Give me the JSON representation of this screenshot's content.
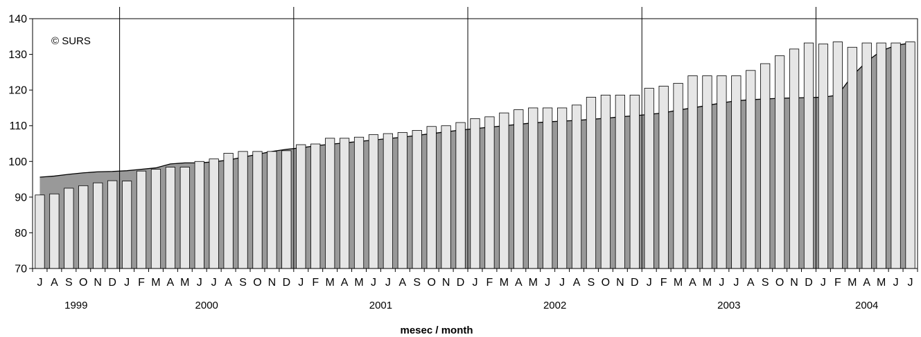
{
  "chart_data": {
    "type": "bar",
    "copyright": "© SURS",
    "xlabel": "mesec / month",
    "ylim": [
      70,
      140
    ],
    "yticks": [
      70,
      80,
      90,
      100,
      110,
      120,
      130,
      140
    ],
    "colors": {
      "bars": "#e6e6e6",
      "area": "#999999",
      "line": "#000000"
    },
    "categories": [
      "J",
      "A",
      "S",
      "O",
      "N",
      "D",
      "J",
      "F",
      "M",
      "A",
      "M",
      "J",
      "J",
      "A",
      "S",
      "O",
      "N",
      "D",
      "J",
      "F",
      "M",
      "A",
      "M",
      "J",
      "J",
      "A",
      "S",
      "O",
      "N",
      "D",
      "J",
      "F",
      "M",
      "A",
      "M",
      "J",
      "J",
      "A",
      "S",
      "O",
      "N",
      "D",
      "J",
      "F",
      "M",
      "A",
      "M",
      "J",
      "J",
      "A",
      "S",
      "O",
      "N",
      "D",
      "J",
      "F",
      "M",
      "A",
      "M",
      "J",
      "J"
    ],
    "years": [
      {
        "label": "1999",
        "start": 0,
        "count": 6
      },
      {
        "label": "2000",
        "start": 6,
        "count": 12
      },
      {
        "label": "2001",
        "start": 18,
        "count": 12
      },
      {
        "label": "2002",
        "start": 30,
        "count": 12
      },
      {
        "label": "2003",
        "start": 42,
        "count": 12
      },
      {
        "label": "2004",
        "start": 54,
        "count": 7
      }
    ],
    "series": [
      {
        "kind": "bar",
        "values": [
          90.6,
          90.9,
          92.5,
          93.2,
          94.0,
          94.6,
          94.5,
          97.3,
          97.8,
          98.4,
          98.4,
          100.0,
          100.7,
          102.3,
          102.8,
          102.8,
          102.8,
          103.0,
          104.7,
          104.9,
          106.5,
          106.5,
          106.8,
          107.5,
          107.8,
          108.1,
          108.7,
          109.8,
          110.0,
          110.9,
          112.0,
          112.5,
          113.6,
          114.5,
          115.0,
          115.0,
          115.0,
          115.8,
          118.0,
          118.6,
          118.6,
          118.6,
          120.5,
          121.1,
          121.9,
          124.0,
          124.0,
          124.0,
          124.0,
          125.5,
          127.4,
          129.6,
          131.5,
          133.2,
          132.9,
          133.5,
          132.0,
          133.2,
          133.2,
          133.2,
          133.5
        ]
      },
      {
        "kind": "area",
        "values": [
          95.6,
          95.9,
          96.4,
          96.8,
          97.1,
          97.2,
          97.4,
          97.8,
          98.2,
          99.3,
          99.6,
          99.6,
          99.9,
          100.4,
          101.2,
          102.0,
          102.8,
          103.4,
          103.8,
          104.4,
          104.8,
          105.2,
          105.6,
          106.0,
          106.4,
          106.8,
          107.3,
          107.8,
          108.3,
          108.8,
          109.2,
          109.6,
          110.0,
          110.4,
          110.8,
          111.1,
          111.3,
          111.5,
          111.8,
          112.1,
          112.5,
          112.8,
          113.2,
          113.6,
          114.4,
          115.0,
          115.7,
          116.4,
          117.0,
          117.3,
          117.5,
          117.7,
          117.8,
          117.9,
          118.0,
          118.6,
          124.0,
          128.0,
          131.0,
          132.5,
          133.2
        ]
      }
    ]
  }
}
